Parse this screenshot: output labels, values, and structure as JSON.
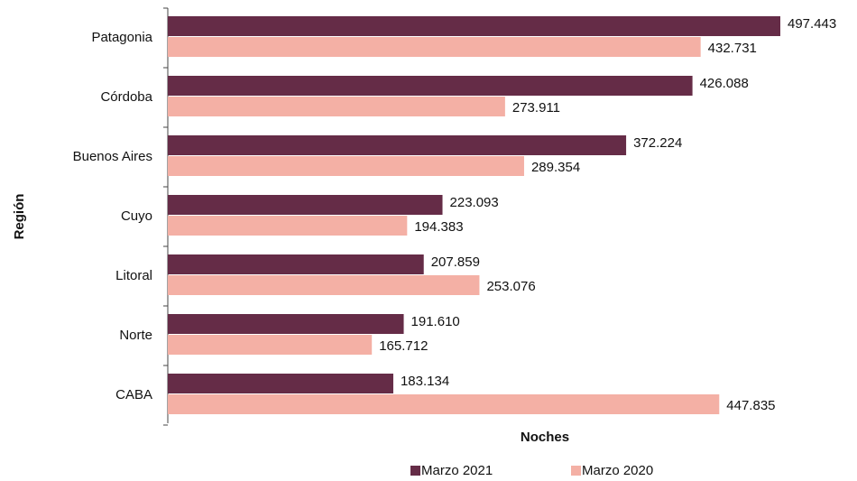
{
  "chart_data": {
    "type": "bar",
    "orientation": "horizontal",
    "x_label": "Noches",
    "y_label": "Región",
    "categories": [
      "Patagonia",
      "Córdoba",
      "Buenos Aires",
      "Cuyo",
      "Litoral",
      "Norte",
      "CABA"
    ],
    "series": [
      {
        "name": "Marzo 2021",
        "color": "#652c47",
        "values": [
          497443,
          426088,
          372224,
          223093,
          207859,
          191610,
          183134
        ],
        "value_labels": [
          "497.443",
          "426.088",
          "372.224",
          "223.093",
          "207.859",
          "191.610",
          "183.134"
        ]
      },
      {
        "name": "Marzo 2020",
        "color": "#f4b0a5",
        "values": [
          432731,
          273911,
          289354,
          194383,
          253076,
          165712,
          447835
        ],
        "value_labels": [
          "432.731",
          "273.911",
          "289.354",
          "194.383",
          "253.076",
          "165.712",
          "447.835"
        ]
      }
    ]
  }
}
